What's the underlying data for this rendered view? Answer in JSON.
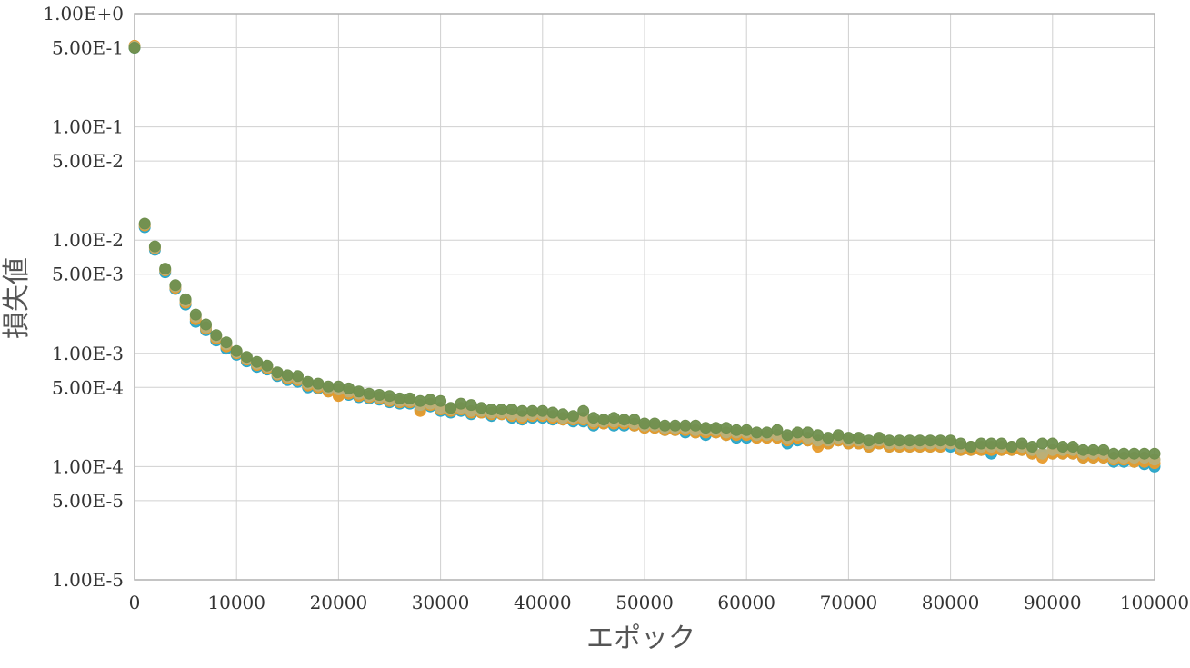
{
  "chart_data": {
    "type": "scatter",
    "xlabel": "エポック",
    "ylabel": "損失値",
    "xlim": [
      0,
      100000
    ],
    "ylim": [
      1e-05,
      1
    ],
    "y_scale": "log",
    "grid": true,
    "x_ticks": [
      "0",
      "10000",
      "20000",
      "30000",
      "40000",
      "50000",
      "60000",
      "70000",
      "80000",
      "90000",
      "100000"
    ],
    "x_tick_values": [
      0,
      10000,
      20000,
      30000,
      40000,
      50000,
      60000,
      70000,
      80000,
      90000,
      100000
    ],
    "y_ticks": [
      "1.00E+0",
      "5.00E-1",
      "1.00E-1",
      "5.00E-2",
      "1.00E-2",
      "5.00E-3",
      "1.00E-3",
      "5.00E-4",
      "1.00E-4",
      "5.00E-5",
      "1.00E-5"
    ],
    "y_tick_values": [
      1,
      0.5,
      0.1,
      0.05,
      0.01,
      0.005,
      0.001,
      0.0005,
      0.0001,
      5e-05,
      1e-05
    ],
    "x": [
      0,
      1000,
      2000,
      3000,
      4000,
      5000,
      6000,
      7000,
      8000,
      9000,
      10000,
      11000,
      12000,
      13000,
      14000,
      15000,
      16000,
      17000,
      18000,
      19000,
      20000,
      21000,
      22000,
      23000,
      24000,
      25000,
      26000,
      27000,
      28000,
      29000,
      30000,
      31000,
      32000,
      33000,
      34000,
      35000,
      36000,
      37000,
      38000,
      39000,
      40000,
      41000,
      42000,
      43000,
      44000,
      45000,
      46000,
      47000,
      48000,
      49000,
      50000,
      51000,
      52000,
      53000,
      54000,
      55000,
      56000,
      57000,
      58000,
      59000,
      60000,
      61000,
      62000,
      63000,
      64000,
      65000,
      66000,
      67000,
      68000,
      69000,
      70000,
      71000,
      72000,
      73000,
      74000,
      75000,
      76000,
      77000,
      78000,
      79000,
      80000,
      81000,
      82000,
      83000,
      84000,
      85000,
      86000,
      87000,
      88000,
      89000,
      90000,
      91000,
      92000,
      93000,
      94000,
      95000,
      96000,
      97000,
      98000,
      99000,
      100000
    ],
    "series": [
      {
        "color": "#2aa5c8",
        "values": [
          0.5,
          0.013,
          0.0082,
          0.0052,
          0.0037,
          0.0027,
          0.0019,
          0.0016,
          0.0013,
          0.0011,
          0.00097,
          0.00085,
          0.00076,
          0.00072,
          0.00063,
          0.00058,
          0.00056,
          0.0005,
          0.00049,
          0.00046,
          0.00043,
          0.00043,
          0.00041,
          0.0004,
          0.00039,
          0.00037,
          0.00036,
          0.00036,
          0.00032,
          0.00034,
          0.00031,
          0.0003,
          0.00031,
          0.00029,
          0.0003,
          0.00028,
          0.00029,
          0.00027,
          0.00026,
          0.00027,
          0.00027,
          0.00026,
          0.00026,
          0.00025,
          0.00025,
          0.00023,
          0.00024,
          0.00023,
          0.00023,
          0.00023,
          0.00022,
          0.00022,
          0.00021,
          0.00021,
          0.0002,
          0.0002,
          0.00019,
          0.0002,
          0.00019,
          0.00018,
          0.00018,
          0.00018,
          0.00018,
          0.00018,
          0.00016,
          0.00017,
          0.00017,
          0.00016,
          0.00016,
          0.00017,
          0.00016,
          0.00016,
          0.00015,
          0.00016,
          0.00015,
          0.00015,
          0.00015,
          0.00015,
          0.00015,
          0.00015,
          0.00015,
          0.00014,
          0.00014,
          0.00014,
          0.00013,
          0.00014,
          0.00014,
          0.00014,
          0.00013,
          0.00013,
          0.00013,
          0.00013,
          0.00013,
          0.00012,
          0.00012,
          0.00012,
          0.00011,
          0.00011,
          0.00011,
          0.000105,
          0.0001
        ]
      },
      {
        "color": "#e89b2c",
        "values": [
          0.52,
          0.0135,
          0.0085,
          0.0054,
          0.0038,
          0.0028,
          0.002,
          0.00165,
          0.00135,
          0.00115,
          0.001,
          0.00088,
          0.00079,
          0.00074,
          0.00065,
          0.0006,
          0.00058,
          0.00052,
          0.0005,
          0.00046,
          0.00042,
          0.00044,
          0.00042,
          0.00041,
          0.0004,
          0.00038,
          0.00037,
          0.00037,
          0.00031,
          0.00035,
          0.00032,
          0.00031,
          0.00032,
          0.0003,
          0.0003,
          0.00029,
          0.00029,
          0.00028,
          0.00027,
          0.00028,
          0.00028,
          0.00027,
          0.00026,
          0.00026,
          0.00026,
          0.00024,
          0.00024,
          0.00024,
          0.00024,
          0.00023,
          0.00022,
          0.00022,
          0.00021,
          0.00021,
          0.00021,
          0.0002,
          0.0002,
          0.0002,
          0.00019,
          0.00019,
          0.00019,
          0.00018,
          0.00018,
          0.00018,
          0.00017,
          0.00018,
          0.00017,
          0.00015,
          0.00016,
          0.00017,
          0.00016,
          0.00016,
          0.00015,
          0.00016,
          0.00015,
          0.00015,
          0.00015,
          0.00015,
          0.00015,
          0.00015,
          0.00016,
          0.00014,
          0.00014,
          0.00014,
          0.00014,
          0.00014,
          0.00014,
          0.00014,
          0.00013,
          0.00012,
          0.00013,
          0.00013,
          0.00013,
          0.00012,
          0.00012,
          0.00012,
          0.000115,
          0.000115,
          0.00011,
          0.00011,
          0.000107
        ]
      },
      {
        "color": "#b9b07a",
        "values": [
          0.51,
          0.0138,
          0.0086,
          0.0055,
          0.0039,
          0.0029,
          0.0021,
          0.0017,
          0.0014,
          0.0012,
          0.00102,
          0.0009,
          0.00081,
          0.00076,
          0.00066,
          0.00062,
          0.0006,
          0.00054,
          0.00052,
          0.00049,
          0.00048,
          0.00046,
          0.00044,
          0.00042,
          0.00041,
          0.00039,
          0.00038,
          0.00038,
          0.00035,
          0.00036,
          0.00033,
          0.00032,
          0.00033,
          0.00031,
          0.00031,
          0.0003,
          0.0003,
          0.00029,
          0.00028,
          0.00029,
          0.00029,
          0.00028,
          0.00027,
          0.00027,
          0.00027,
          0.00025,
          0.00025,
          0.00025,
          0.00025,
          0.00024,
          0.00023,
          0.00023,
          0.00022,
          0.00022,
          0.00022,
          0.00021,
          0.00021,
          0.00021,
          0.0002,
          0.0002,
          0.0002,
          0.00019,
          0.00019,
          0.00019,
          0.00018,
          0.00019,
          0.00018,
          0.00017,
          0.00017,
          0.00018,
          0.00017,
          0.00017,
          0.00016,
          0.00017,
          0.00016,
          0.00016,
          0.00016,
          0.00016,
          0.00016,
          0.00016,
          0.00016,
          0.00015,
          0.00015,
          0.00015,
          0.00015,
          0.00015,
          0.00015,
          0.00015,
          0.00014,
          0.00013,
          0.00014,
          0.00014,
          0.00014,
          0.00013,
          0.00013,
          0.00013,
          0.00012,
          0.00012,
          0.00012,
          0.00012,
          0.000115
        ]
      },
      {
        "color": "#6f8f4e",
        "values": [
          0.5,
          0.014,
          0.0088,
          0.0056,
          0.004,
          0.003,
          0.0022,
          0.0018,
          0.00145,
          0.00125,
          0.00105,
          0.00093,
          0.00084,
          0.00078,
          0.00068,
          0.00064,
          0.00063,
          0.00056,
          0.00054,
          0.00051,
          0.00051,
          0.00049,
          0.00046,
          0.00044,
          0.00043,
          0.00042,
          0.0004,
          0.0004,
          0.00038,
          0.00039,
          0.00038,
          0.00033,
          0.00036,
          0.00035,
          0.00033,
          0.00032,
          0.00032,
          0.00032,
          0.00031,
          0.00031,
          0.00031,
          0.0003,
          0.00029,
          0.00028,
          0.00031,
          0.00027,
          0.00026,
          0.00027,
          0.00026,
          0.00026,
          0.00024,
          0.00024,
          0.00023,
          0.00023,
          0.00023,
          0.00023,
          0.00022,
          0.00022,
          0.00022,
          0.00021,
          0.00021,
          0.0002,
          0.0002,
          0.00021,
          0.00019,
          0.0002,
          0.0002,
          0.00019,
          0.00018,
          0.00019,
          0.00018,
          0.00018,
          0.00017,
          0.00018,
          0.00017,
          0.00017,
          0.00017,
          0.00017,
          0.00017,
          0.00017,
          0.00017,
          0.00016,
          0.00015,
          0.00016,
          0.00016,
          0.00016,
          0.00015,
          0.00016,
          0.00015,
          0.00016,
          0.00016,
          0.00015,
          0.00015,
          0.00014,
          0.00014,
          0.00014,
          0.00013,
          0.00013,
          0.00013,
          0.00013,
          0.00013
        ]
      }
    ]
  }
}
